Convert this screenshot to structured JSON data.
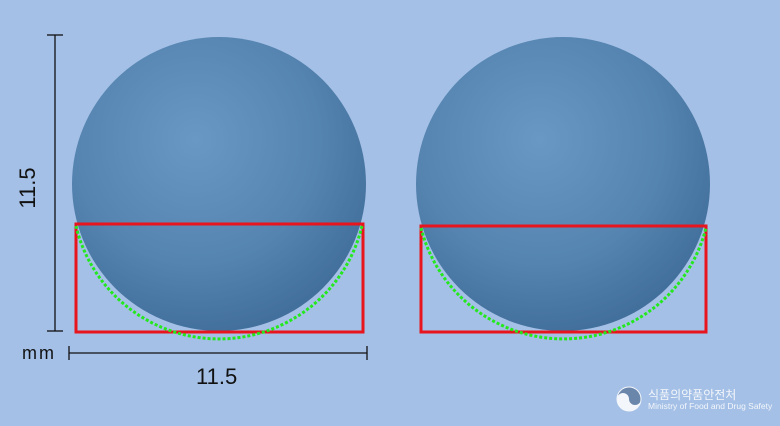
{
  "dimensions": {
    "height_label": "11.5",
    "width_label": "11.5",
    "unit_label": "mm"
  },
  "pill": {
    "shape": "round",
    "color": "#4f7ca8",
    "highlight_color": "#6a98c4",
    "shadow_color": "#3f6c98"
  },
  "overlay": {
    "box_color": "#e8141e",
    "edge_color": "#22e81c"
  },
  "logo": {
    "korean": "식품의약품안전처",
    "english": "Ministry of Food and Drug Safety"
  },
  "colors": {
    "background": "#a4c0e6"
  }
}
